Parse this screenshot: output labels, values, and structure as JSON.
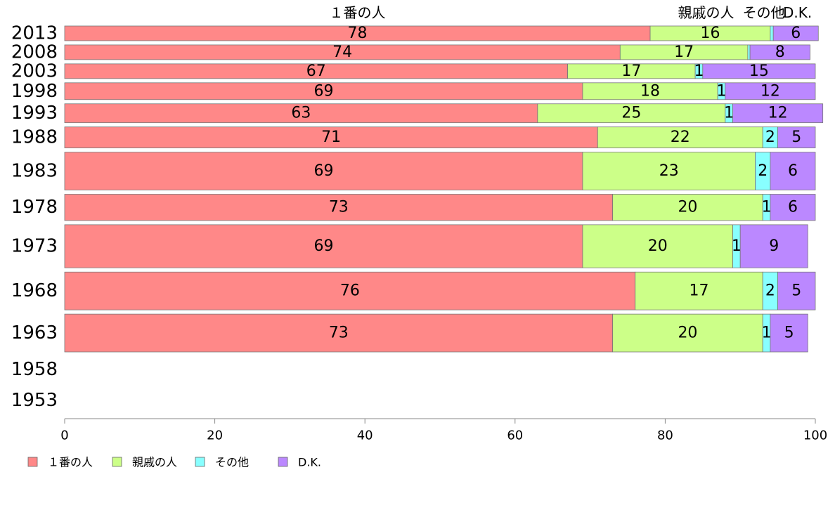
{
  "chart_data": {
    "type": "bar",
    "orientation": "horizontal",
    "stacked": true,
    "categories": [
      "2013",
      "2008",
      "2003",
      "1998",
      "1993",
      "1988",
      "1983",
      "1978",
      "1973",
      "1968",
      "1963",
      "1958",
      "1953"
    ],
    "series": [
      {
        "name": "１番の人",
        "color": "#ff8888",
        "values": [
          78,
          74,
          67,
          69,
          63,
          71,
          69,
          73,
          69,
          76,
          73,
          null,
          null
        ]
      },
      {
        "name": "親戚の人",
        "color": "#ccff88",
        "values": [
          16,
          17,
          17,
          18,
          25,
          22,
          23,
          20,
          20,
          17,
          20,
          null,
          null
        ]
      },
      {
        "name": "その他",
        "color": "#88ffff",
        "values": [
          0.4,
          0.3,
          1,
          1,
          1,
          2,
          2,
          1,
          1,
          2,
          1,
          null,
          null
        ]
      },
      {
        "name": "D.K.",
        "color": "#bb88ff",
        "values": [
          6,
          8,
          15,
          12,
          12,
          5,
          6,
          6,
          9,
          5,
          5,
          null,
          null
        ]
      }
    ],
    "data_labels": [
      [
        "78",
        "74",
        "67",
        "69",
        "63",
        "71",
        "69",
        "73",
        "69",
        "76",
        "73",
        "",
        ""
      ],
      [
        "16",
        "17",
        "17",
        "18",
        "25",
        "22",
        "23",
        "20",
        "20",
        "17",
        "20",
        "",
        ""
      ],
      [
        "",
        "",
        "1",
        "1",
        "1",
        "2",
        "2",
        "1",
        "1",
        "2",
        "1",
        "",
        ""
      ],
      [
        "6",
        "8",
        "15",
        "12",
        "12",
        "5",
        "6",
        "6",
        "9",
        "5",
        "5",
        "",
        ""
      ]
    ],
    "bar_weights": [
      0.9,
      0.9,
      0.9,
      1.0,
      1.1,
      1.2,
      2.0,
      1.45,
      2.25,
      2.0,
      2.0,
      0,
      0
    ],
    "top_labels": [
      "１番の人",
      "親戚の人",
      "その他",
      "D.K."
    ],
    "xlim": [
      0,
      100
    ],
    "xticks": [
      0,
      20,
      40,
      60,
      80,
      100
    ],
    "xtick_labels": [
      "0",
      "20",
      "40",
      "60",
      "80",
      "100"
    ],
    "grid": false,
    "legend_position": "bottom-left"
  }
}
